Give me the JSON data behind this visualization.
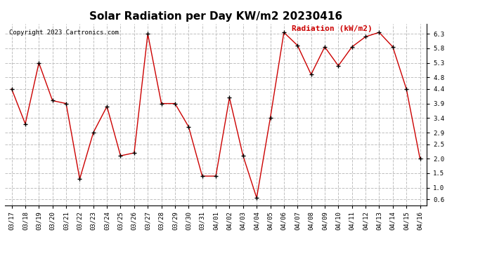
{
  "title": "Solar Radiation per Day KW/m2 20230416",
  "copyright": "Copyright 2023 Cartronics.com",
  "legend_label": "Radiation (kW/m2)",
  "dates": [
    "03/17",
    "03/18",
    "03/19",
    "03/20",
    "03/21",
    "03/22",
    "03/23",
    "03/24",
    "03/25",
    "03/26",
    "03/27",
    "03/28",
    "03/29",
    "03/30",
    "03/31",
    "04/01",
    "04/02",
    "04/03",
    "04/04",
    "04/05",
    "04/06",
    "04/07",
    "04/08",
    "04/09",
    "04/10",
    "04/11",
    "04/12",
    "04/13",
    "04/14",
    "04/15",
    "04/16"
  ],
  "values": [
    4.4,
    3.2,
    5.3,
    4.0,
    3.9,
    1.3,
    2.9,
    3.8,
    2.1,
    2.2,
    6.3,
    3.9,
    3.9,
    3.1,
    1.4,
    1.4,
    4.1,
    2.1,
    0.65,
    3.4,
    6.35,
    5.9,
    4.9,
    5.85,
    5.2,
    5.85,
    6.2,
    6.35,
    5.85,
    4.4,
    2.0
  ],
  "line_color": "#cc0000",
  "marker_color": "#000000",
  "background_color": "#ffffff",
  "grid_color": "#c0c0c0",
  "ylim": [
    0.4,
    6.65
  ],
  "yticks": [
    0.6,
    1.0,
    1.5,
    2.0,
    2.5,
    2.9,
    3.4,
    3.9,
    4.4,
    4.8,
    5.3,
    5.8,
    6.3
  ],
  "ytick_labels": [
    "0.6",
    "1.0",
    "1.5",
    "2.0",
    "2.5",
    "2.9",
    "3.4",
    "3.9",
    "4.4",
    "4.8",
    "5.3",
    "5.8",
    "6.3"
  ],
  "title_fontsize": 11,
  "copyright_fontsize": 6.5,
  "legend_fontsize": 8,
  "tick_fontsize": 6.5
}
